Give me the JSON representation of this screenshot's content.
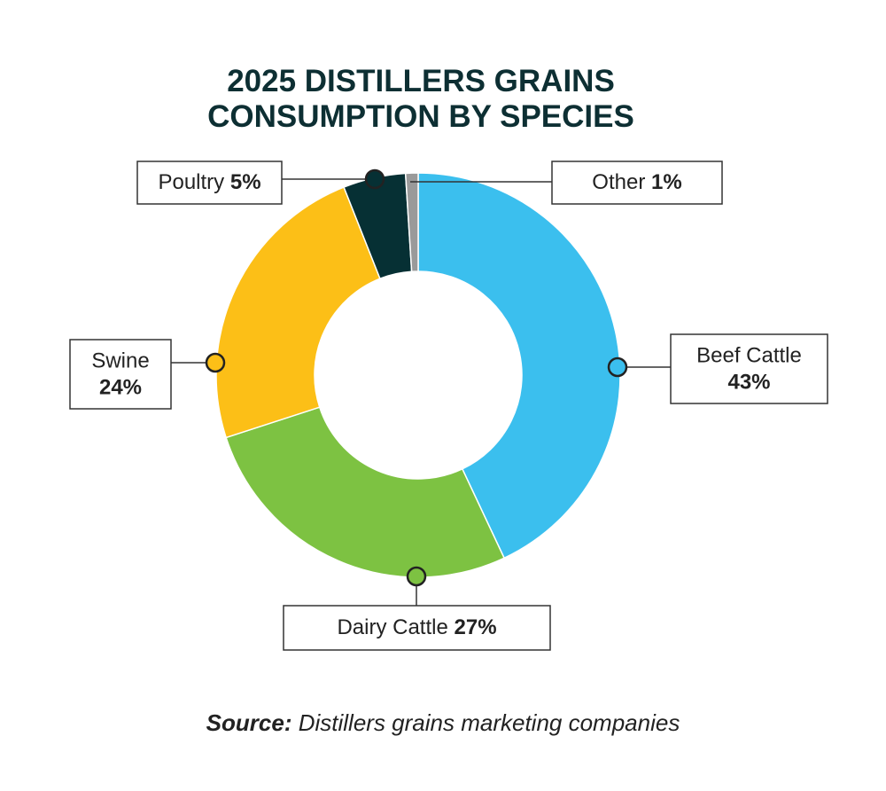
{
  "chart_data": {
    "type": "donut",
    "title": "2025 DISTILLERS GRAINS CONSUMPTION BY SPECIES",
    "categories": [
      "Beef Cattle",
      "Dairy Cattle",
      "Swine",
      "Poultry",
      "Other"
    ],
    "values": [
      43,
      27,
      24,
      5,
      1
    ],
    "value_labels": [
      "43%",
      "27%",
      "24%",
      "5%",
      "1%"
    ],
    "colors": [
      "#3bbfee",
      "#7dc242",
      "#fcbf17",
      "#063034",
      "#9a9a9a"
    ],
    "source_label": "Source:",
    "source": "Distillers grains marketing companies"
  }
}
